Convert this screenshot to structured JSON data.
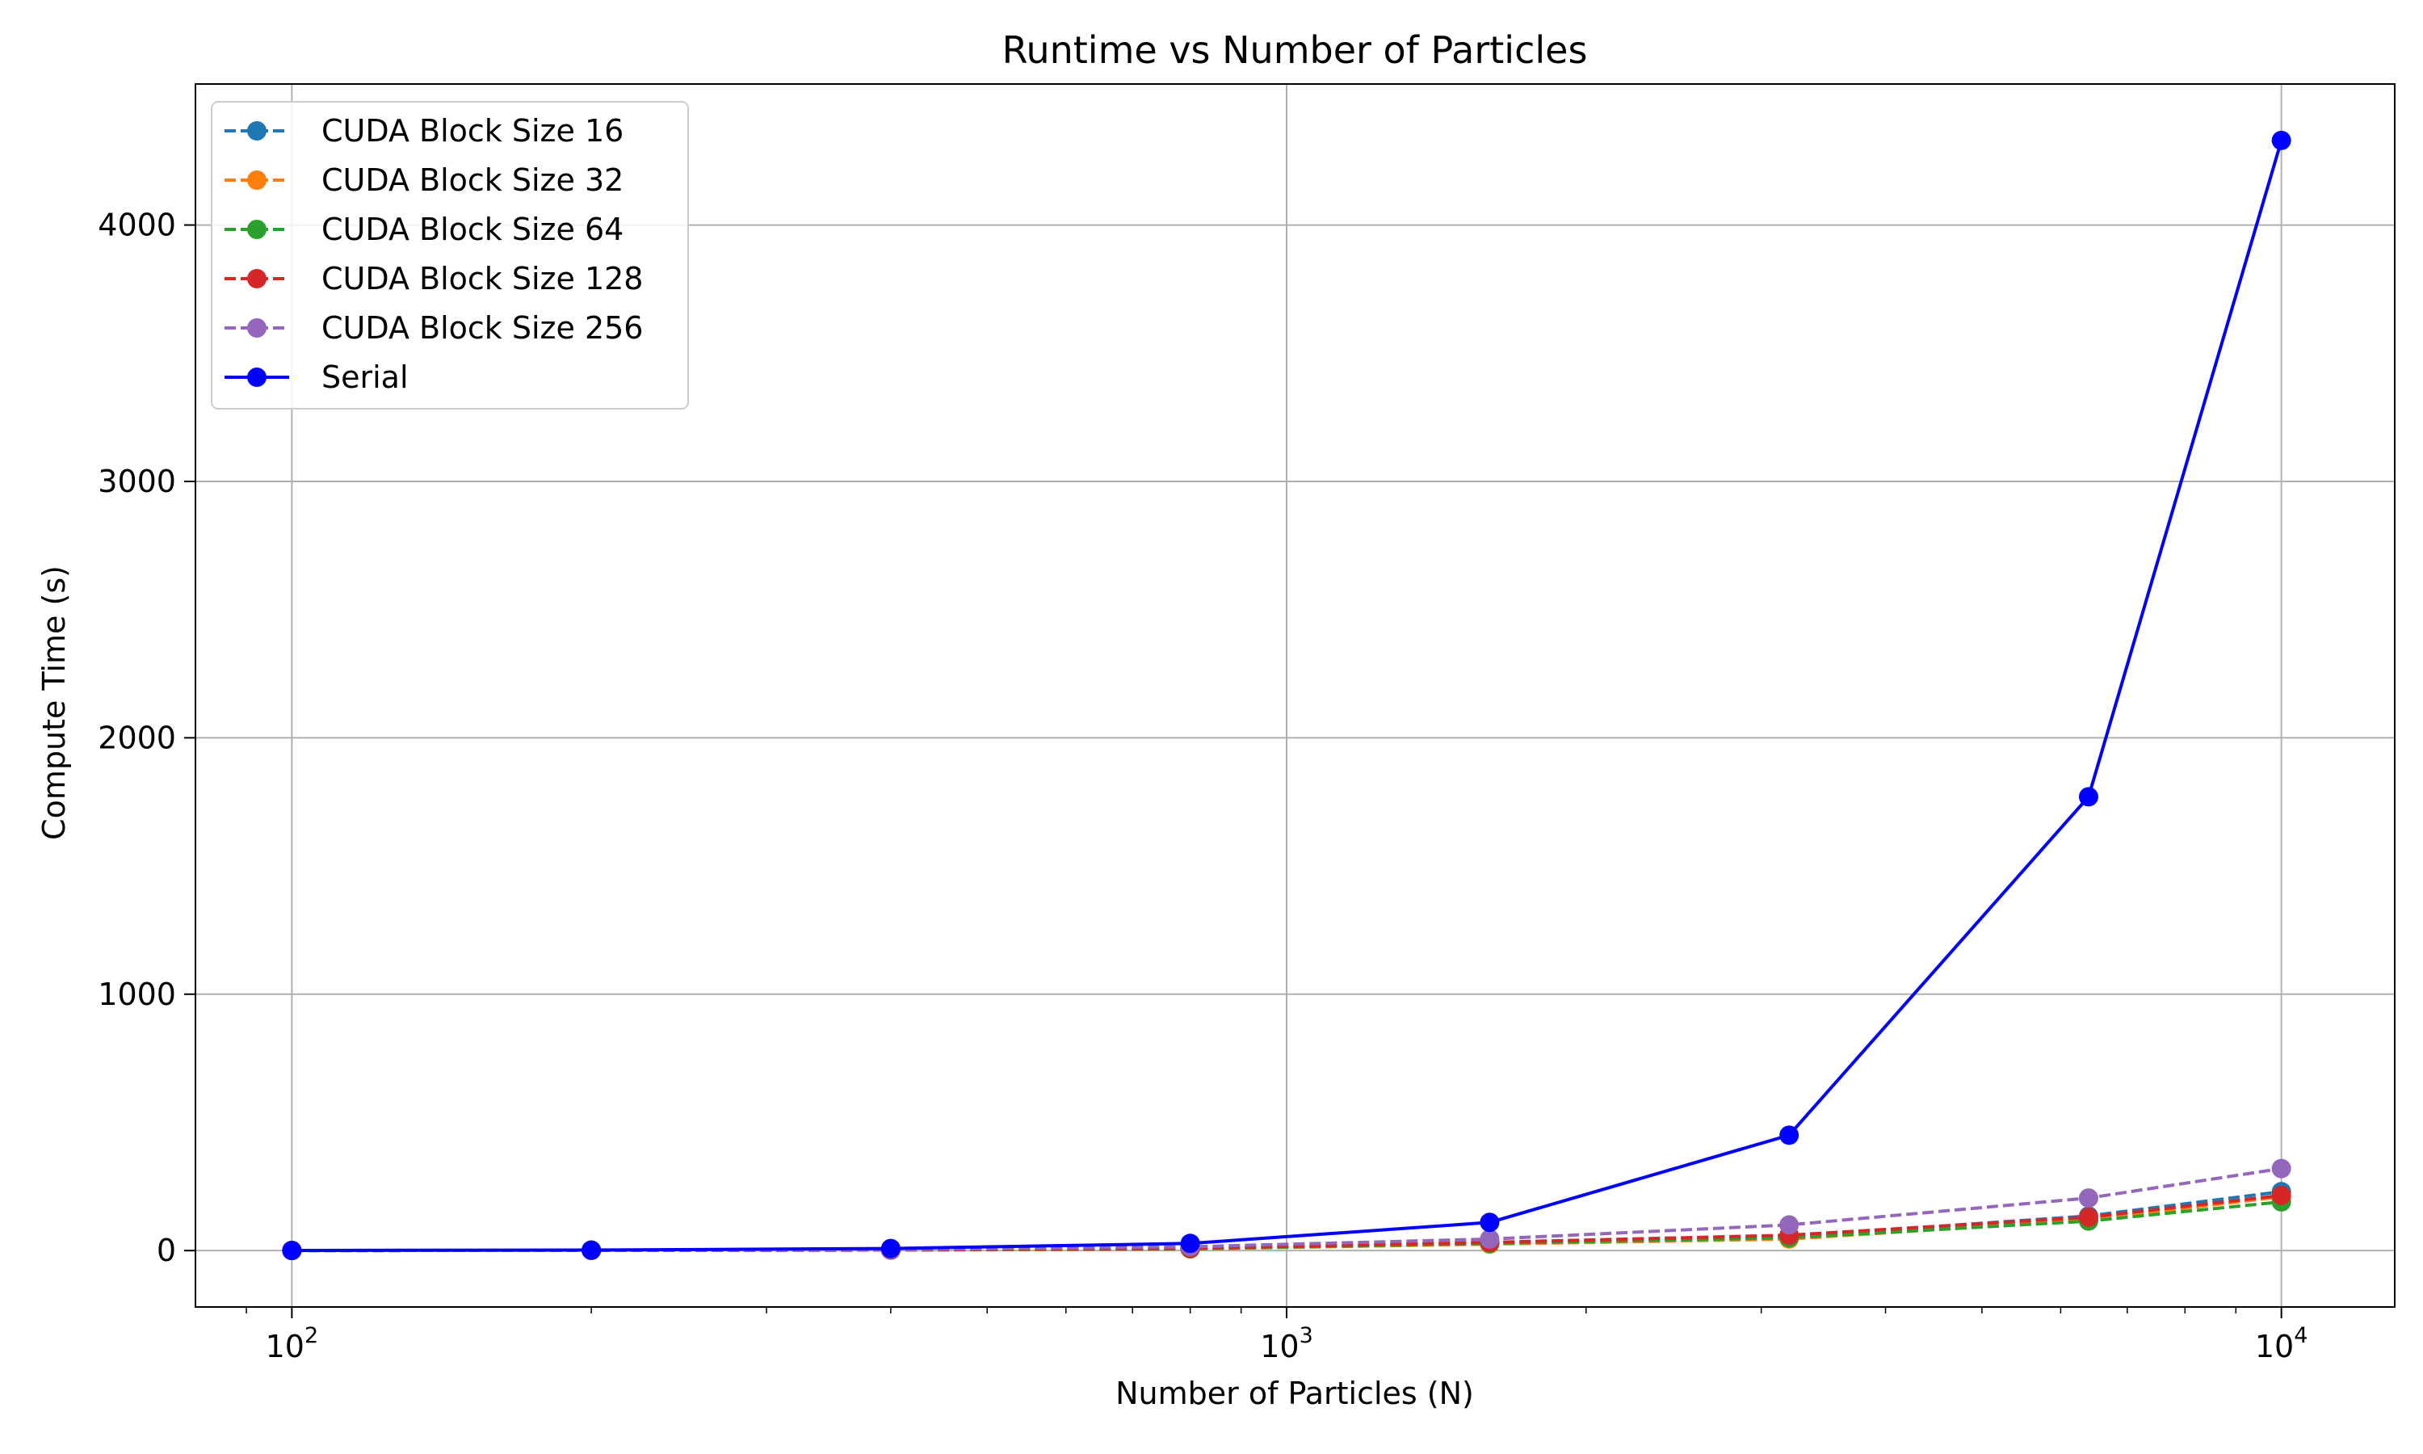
{
  "chart_data": {
    "type": "line",
    "title": "Runtime vs Number of Particles",
    "xlabel": "Number of Particles (N)",
    "ylabel": "Compute Time (s)",
    "x_scale": "log",
    "xlim": [
      80,
      13000
    ],
    "ylim": [
      -220,
      4550
    ],
    "grid": true,
    "legend_position": "top-left",
    "x_ticks": [
      {
        "value": 100,
        "base": "10",
        "exp": "2"
      },
      {
        "value": 1000,
        "base": "10",
        "exp": "3"
      },
      {
        "value": 10000,
        "base": "10",
        "exp": "4"
      }
    ],
    "y_ticks": [
      0,
      1000,
      2000,
      3000,
      4000
    ],
    "x": [
      100,
      200,
      400,
      800,
      1600,
      3200,
      6400,
      10000
    ],
    "series": [
      {
        "name": "CUDA Block Size 16",
        "color": "#1f77b4",
        "dashed": true,
        "values": [
          0.2,
          0.6,
          2,
          8,
          30,
          55,
          135,
          230
        ]
      },
      {
        "name": "CUDA Block Size 32",
        "color": "#ff7f0e",
        "dashed": true,
        "values": [
          0.2,
          0.5,
          2,
          6,
          25,
          45,
          120,
          210
        ]
      },
      {
        "name": "CUDA Block Size 64",
        "color": "#2ca02c",
        "dashed": true,
        "values": [
          0.2,
          0.5,
          2,
          7,
          28,
          50,
          115,
          190
        ]
      },
      {
        "name": "CUDA Block Size 128",
        "color": "#d62728",
        "dashed": true,
        "values": [
          0.2,
          0.6,
          2,
          9,
          32,
          60,
          130,
          215
        ]
      },
      {
        "name": "CUDA Block Size 256",
        "color": "#9467bd",
        "dashed": true,
        "values": [
          0.3,
          1,
          4,
          15,
          45,
          100,
          205,
          320
        ]
      },
      {
        "name": "Serial",
        "color": "#0000ff",
        "dashed": false,
        "values": [
          0.5,
          2,
          8,
          28,
          110,
          450,
          1770,
          4330
        ]
      }
    ]
  }
}
